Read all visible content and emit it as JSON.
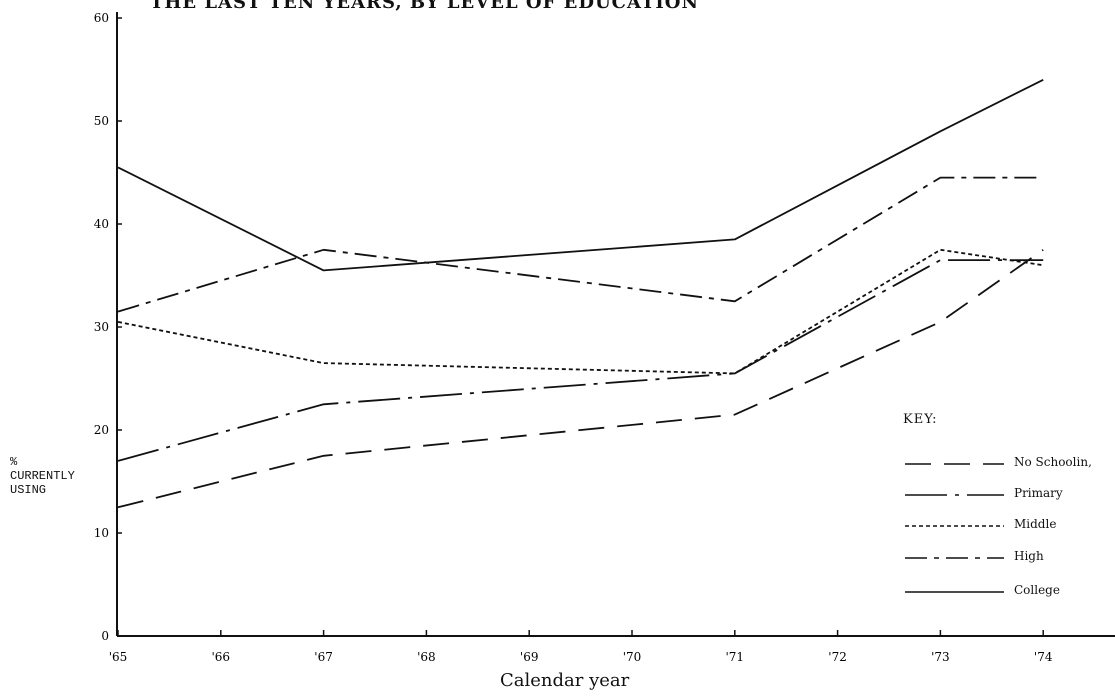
{
  "chart_data": {
    "type": "line",
    "title": "THE LAST TEN YEARS, BY LEVEL OF EDUCATION",
    "xlabel": "Calendar year",
    "ylabel": "%\nCURRENTLY\nUSING",
    "x": [
      1965,
      1966,
      1967,
      1968,
      1969,
      1970,
      1971,
      1972,
      1973,
      1974
    ],
    "x_tick_labels": [
      "'65",
      "'66",
      "'67",
      "'68",
      "'69",
      "'70",
      "'71",
      "'72",
      "'73",
      "'74"
    ],
    "y_ticks": [
      0,
      10,
      20,
      30,
      40,
      50,
      60
    ],
    "ylim": [
      0,
      60
    ],
    "legend_title": "KEY:",
    "series": [
      {
        "name": "No Schoolin,",
        "style": "long-dash",
        "x": [
          1965,
          1967,
          1971,
          1973,
          1974
        ],
        "values": [
          12.5,
          17.5,
          21.5,
          30.5,
          37.5
        ]
      },
      {
        "name": "Primary",
        "style": "dash-dot",
        "x": [
          1965,
          1967,
          1971,
          1973,
          1974
        ],
        "values": [
          17.0,
          22.5,
          25.5,
          36.5,
          36.5
        ]
      },
      {
        "name": "Middle",
        "style": "dotted",
        "x": [
          1965,
          1967,
          1971,
          1973,
          1974
        ],
        "values": [
          30.5,
          26.5,
          25.5,
          37.5,
          36.0
        ]
      },
      {
        "name": "High",
        "style": "dash-dot-dot",
        "x": [
          1965,
          1967,
          1971,
          1973,
          1974
        ],
        "values": [
          31.5,
          37.5,
          32.5,
          44.5,
          44.5
        ]
      },
      {
        "name": "College",
        "style": "solid",
        "x": [
          1965,
          1967,
          1971,
          1973,
          1974
        ],
        "values": [
          45.5,
          35.5,
          38.5,
          49.0,
          54.0
        ]
      }
    ],
    "grid": false,
    "legend_position": "right"
  }
}
